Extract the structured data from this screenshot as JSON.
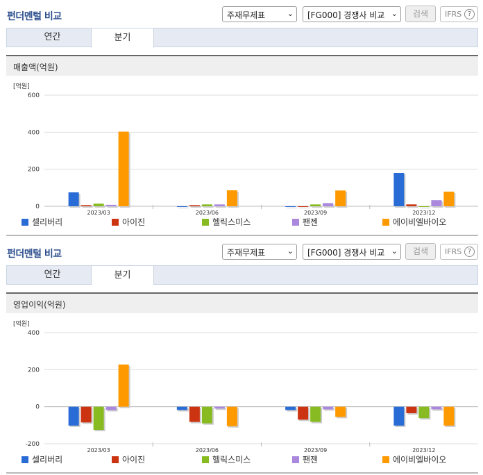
{
  "panels": [
    {
      "title": "펀더멘털 비교",
      "select_fin": "주재무제표",
      "select_cmp": "[FG000] 경쟁사 비교",
      "search_label": "검색",
      "ifrs_label": "IFRS",
      "help_label": "?",
      "tabs": [
        "연간",
        "분기"
      ],
      "active_tab": "분기",
      "section_title": "매출액(억원)"
    },
    {
      "title": "펀더멘털 비교",
      "select_fin": "주재무제표",
      "select_cmp": "[FG000] 경쟁사 비교",
      "search_label": "검색",
      "ifrs_label": "IFRS",
      "help_label": "?",
      "tabs": [
        "연간",
        "분기"
      ],
      "active_tab": "분기",
      "section_title": "영업이익(억원)"
    }
  ],
  "colors": {
    "셀리버리": "#2a6cd6",
    "아이진": "#cc3311",
    "헬릭스미스": "#88bb22",
    "팬젠": "#aa88dd",
    "에이비엘바이오": "#ff9900"
  },
  "chart_data": [
    {
      "type": "bar",
      "unit_label": "[억원]",
      "categories": [
        "2023/03",
        "2023/06",
        "2023/09",
        "2023/12"
      ],
      "ylim": [
        0,
        600
      ],
      "yticks": [
        0,
        200,
        400,
        600
      ],
      "legend": "bottom",
      "series": [
        {
          "name": "셀리버리",
          "values": [
            75,
            0,
            0,
            180
          ]
        },
        {
          "name": "아이진",
          "values": [
            6,
            6,
            0,
            10
          ]
        },
        {
          "name": "헬릭스미스",
          "values": [
            14,
            10,
            10,
            0
          ]
        },
        {
          "name": "팬젠",
          "values": [
            8,
            10,
            17,
            33
          ]
        },
        {
          "name": "에이비엘바이오",
          "values": [
            403,
            86,
            85,
            79
          ]
        }
      ]
    },
    {
      "type": "bar",
      "unit_label": "[억원]",
      "categories": [
        "2023/03",
        "2023/06",
        "2023/09",
        "2023/12"
      ],
      "ylim": [
        -200,
        400
      ],
      "yticks": [
        -200,
        0,
        200,
        400
      ],
      "legend": "bottom",
      "series": [
        {
          "name": "셀리버리",
          "values": [
            -102,
            -18,
            -18,
            -102
          ]
        },
        {
          "name": "아이진",
          "values": [
            -85,
            -82,
            -70,
            -35
          ]
        },
        {
          "name": "헬릭스미스",
          "values": [
            -125,
            -90,
            -82,
            -62
          ]
        },
        {
          "name": "팬젠",
          "values": [
            -18,
            -10,
            -14,
            -14
          ]
        },
        {
          "name": "에이비엘바이오",
          "values": [
            228,
            -105,
            -55,
            -102
          ]
        }
      ]
    }
  ]
}
